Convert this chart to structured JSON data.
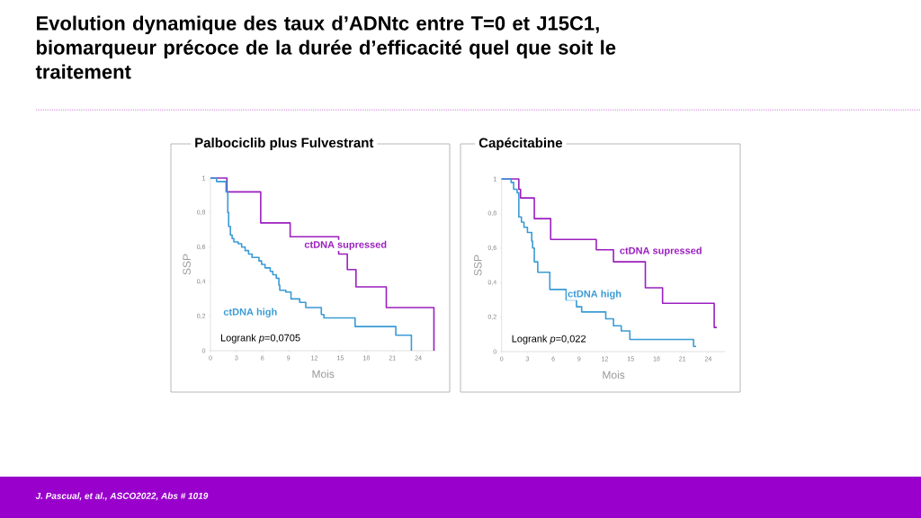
{
  "chart_data": [
    {
      "type": "step",
      "title": "Palbociclib  plus Fulvestrant",
      "xlabel": "Mois",
      "ylabel": "SSP",
      "xlim": [
        0,
        26
      ],
      "ylim": [
        0,
        1
      ],
      "xticks": [
        0,
        3,
        6,
        9,
        12,
        15,
        18,
        21,
        24
      ],
      "yticks": [
        0,
        {
          "value": 0.2,
          "label": "0,2"
        },
        {
          "value": 0.4,
          "label": "0,4"
        },
        {
          "value": 0.6,
          "label": "0,6"
        },
        {
          "value": 0.8,
          "label": "0,8"
        },
        1
      ],
      "annotations": [
        "Logrank *p*=0,0705",
        "Evolution dynamique des taux d’ADNtc entre T=0 et J15C1, biomarqueur précoce de la durée d’efficacité quel que soit le traitement",
        "J. Pascual, et al.,  ASCO2022, Abs # 1019"
      ],
      "series": [
        {
          "name": "ctDNA supressed",
          "color": "#9b1fbf",
          "x": [
            0,
            1.9,
            5.8,
            9.2,
            14.8,
            15.8,
            16.8,
            20.3,
            25.8
          ],
          "values": [
            1,
            0.92,
            0.74,
            0.66,
            0.56,
            0.47,
            0.37,
            0.25,
            0
          ]
        },
        {
          "name": "ctDNA high",
          "color": "#3a9bd5",
          "x": [
            0,
            0.7,
            1.8,
            2.0,
            2.1,
            2.3,
            2.5,
            2.7,
            3.2,
            3.6,
            4.0,
            4.4,
            4.8,
            5.6,
            5.9,
            6.3,
            6.9,
            7.2,
            7.6,
            7.9,
            8.0,
            8.7,
            9.3,
            10.3,
            11.0,
            12.8,
            13.1,
            16.7,
            21.4,
            23.2
          ],
          "values": [
            1,
            0.98,
            0.92,
            0.8,
            0.72,
            0.67,
            0.65,
            0.63,
            0.62,
            0.6,
            0.58,
            0.56,
            0.54,
            0.52,
            0.5,
            0.48,
            0.46,
            0.44,
            0.42,
            0.38,
            0.35,
            0.34,
            0.3,
            0.28,
            0.25,
            0.21,
            0.19,
            0.14,
            0.09,
            0
          ]
        }
      ]
    },
    {
      "type": "step",
      "title": "Capécitabine",
      "xlabel": "Mois",
      "ylabel": "SSP",
      "xlim": [
        0,
        26
      ],
      "ylim": [
        0,
        1
      ],
      "xticks": [
        0,
        3,
        6,
        9,
        12,
        15,
        18,
        21,
        24
      ],
      "yticks": [
        0,
        {
          "value": 0.2,
          "label": "0,2"
        },
        {
          "value": 0.4,
          "label": "0,4"
        },
        {
          "value": 0.6,
          "label": "0,6"
        },
        {
          "value": 0.8,
          "label": "0,8"
        },
        1
      ],
      "annotations": [
        "Logrank *p*=0,022"
      ],
      "series": [
        {
          "name": "ctDNA supressed",
          "color": "#9b1fbf",
          "x": [
            0,
            2.0,
            2.2,
            3.8,
            5.7,
            11.0,
            13.0,
            16.7,
            18.7,
            24.7,
            25.0
          ],
          "values": [
            1,
            0.94,
            0.89,
            0.77,
            0.65,
            0.59,
            0.52,
            0.37,
            0.28,
            0.14,
            0.14
          ]
        },
        {
          "name": "ctDNA high",
          "color": "#3a9bd5",
          "x": [
            0,
            1.1,
            1.4,
            1.8,
            2.0,
            2.3,
            2.6,
            3.0,
            3.5,
            3.6,
            3.8,
            4.2,
            5.6,
            7.5,
            8.7,
            9.3,
            12.1,
            13.0,
            13.9,
            14.9,
            22.3,
            22.6
          ],
          "values": [
            1,
            0.98,
            0.94,
            0.92,
            0.78,
            0.75,
            0.72,
            0.69,
            0.64,
            0.6,
            0.52,
            0.46,
            0.36,
            0.3,
            0.26,
            0.23,
            0.19,
            0.15,
            0.12,
            0.07,
            0.03,
            0.03
          ]
        }
      ]
    }
  ]
}
